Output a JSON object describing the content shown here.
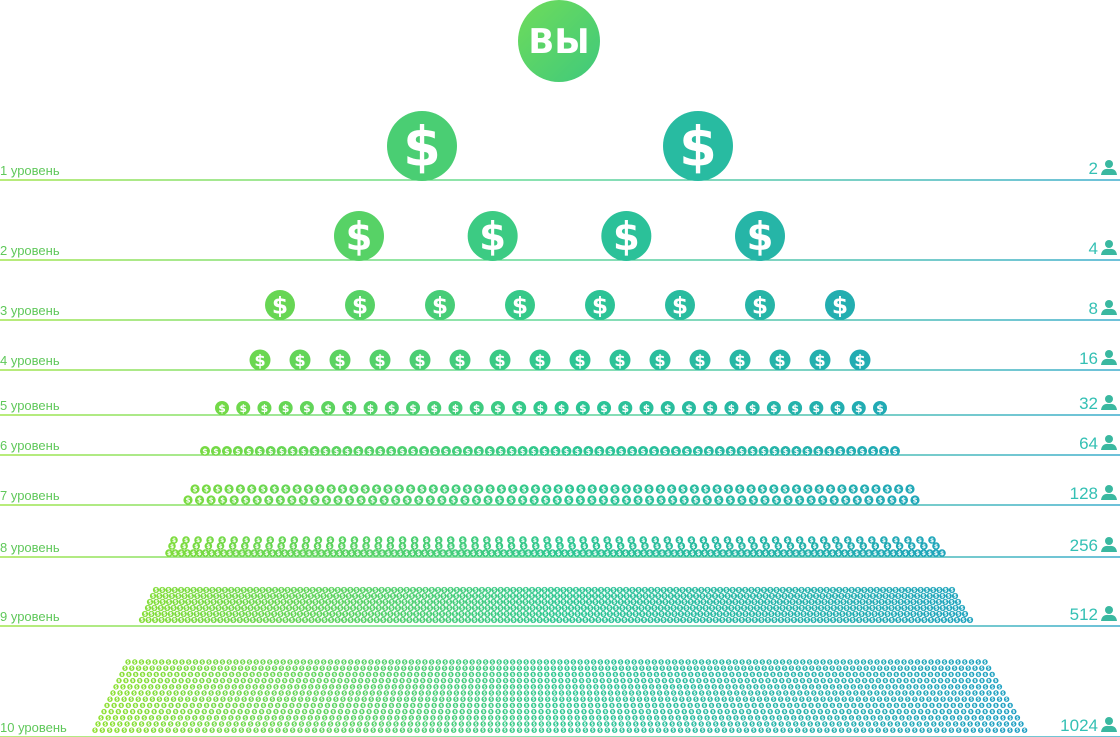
{
  "you": {
    "label": "ВЫ"
  },
  "currency_symbol": "$",
  "levels": [
    {
      "label": "1 уровень",
      "count": "2"
    },
    {
      "label": "2 уровень",
      "count": "4"
    },
    {
      "label": "3 уровень",
      "count": "8"
    },
    {
      "label": "4 уровень",
      "count": "16"
    },
    {
      "label": "5 уровень",
      "count": "32"
    },
    {
      "label": "6 уровень",
      "count": "64"
    },
    {
      "label": "7 уровень",
      "count": "128"
    },
    {
      "label": "8 уровень",
      "count": "256"
    },
    {
      "label": "9 уровень",
      "count": "512"
    },
    {
      "label": "10 уровень",
      "count": "1024"
    }
  ],
  "colors": {
    "green": "#7ddc3a",
    "teal": "#1fa3b5",
    "you_circle": "#5fd16a",
    "person_icon": "#3ab8a0"
  },
  "icons": {
    "coin": "dollar-coin-icon",
    "person": "person-icon"
  }
}
